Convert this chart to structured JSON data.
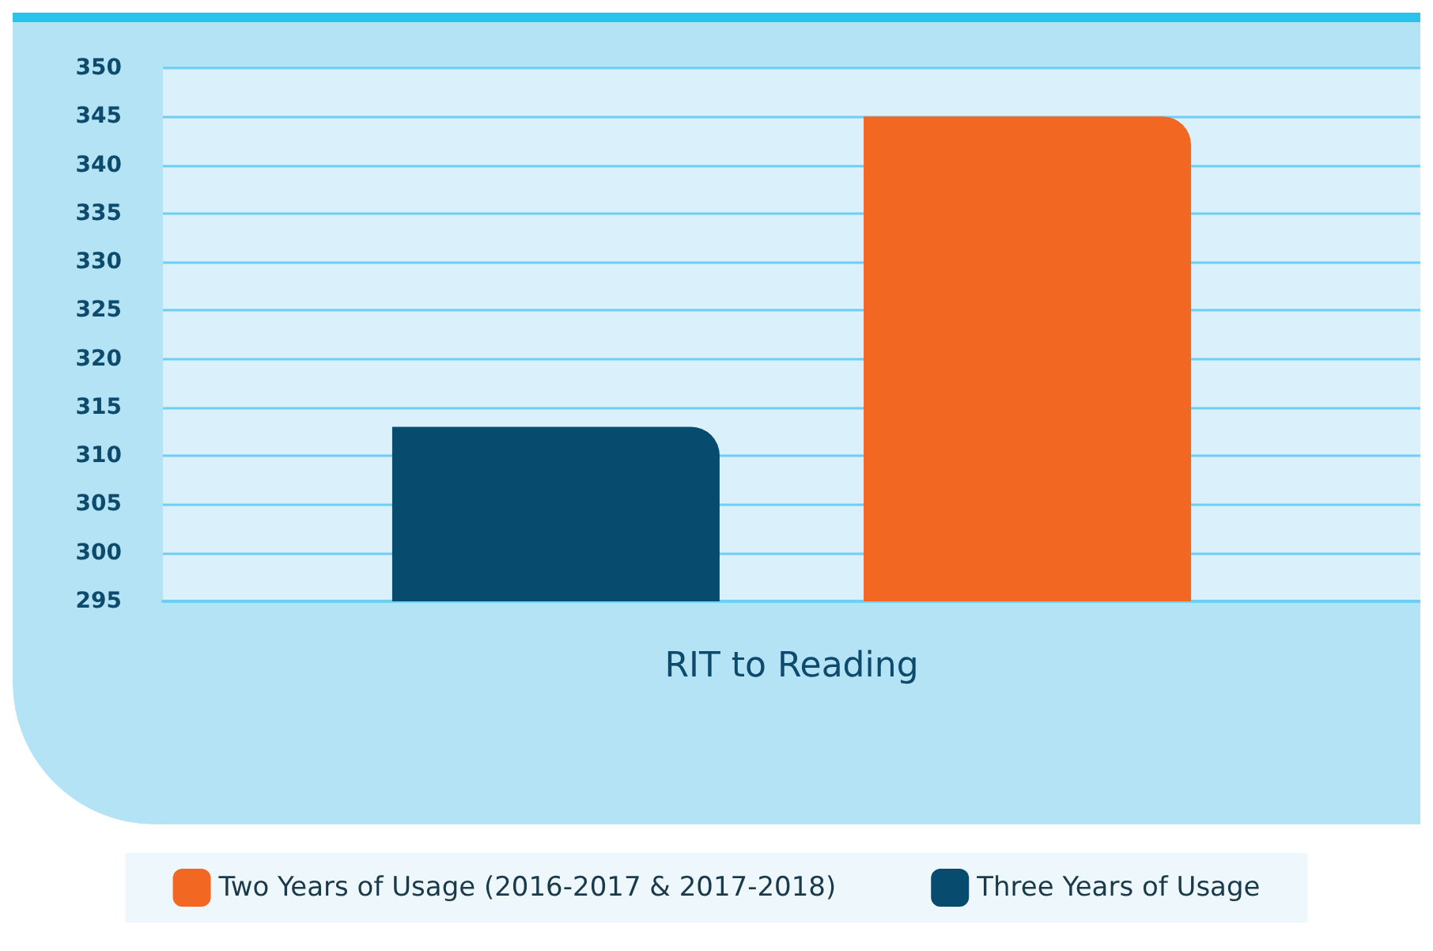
{
  "chart_data": {
    "type": "bar",
    "categories": [
      "RIT to Reading"
    ],
    "series": [
      {
        "name": "Three Years of Usage",
        "color": "#074b6e",
        "values": [
          313
        ]
      },
      {
        "name": "Two Years of Usage (2016-2017 & 2017-2018)",
        "color": "#f26722",
        "values": [
          345
        ]
      }
    ],
    "ylim": [
      295,
      350
    ],
    "yticks": [
      295,
      300,
      305,
      310,
      315,
      320,
      325,
      330,
      335,
      340,
      345,
      350
    ],
    "grid": "y",
    "legend": "bottom"
  }
}
